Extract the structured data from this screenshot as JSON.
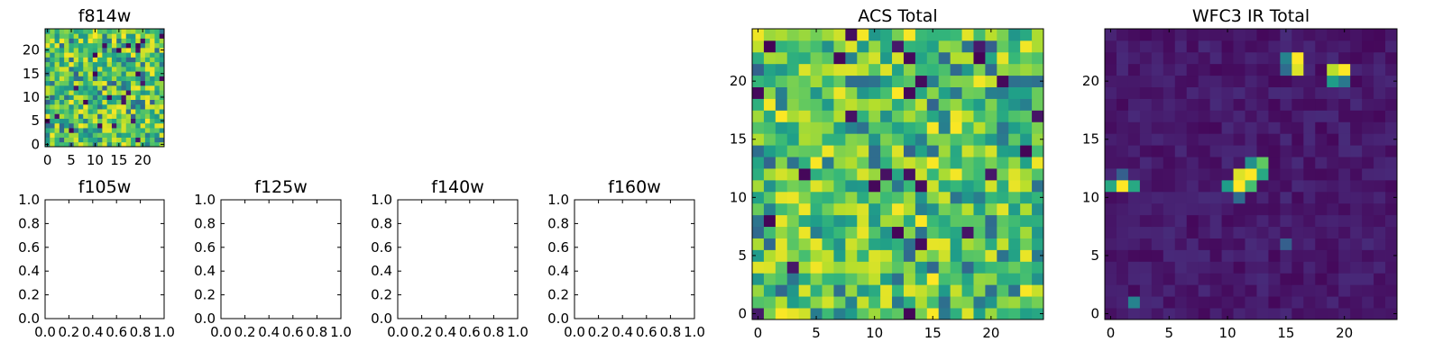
{
  "chart_data": [
    {
      "type": "heatmap",
      "title": "f814w",
      "colormap": "viridis",
      "grid_size": 25,
      "value_range": [
        0,
        1
      ],
      "seed": 814,
      "look": "bright-noise",
      "xlim": [
        -0.5,
        24.5
      ],
      "ylim": [
        -0.5,
        24.5
      ],
      "xticks": [
        0,
        5,
        10,
        15,
        20
      ],
      "yticks": [
        0,
        5,
        10,
        15,
        20
      ],
      "xticklabels": [
        "0",
        "5",
        "10",
        "15",
        "20"
      ],
      "yticklabels": [
        "0",
        "5",
        "10",
        "15",
        "20"
      ]
    },
    {
      "type": "heatmap",
      "title": "f105w",
      "empty": true,
      "xlim": [
        0,
        1
      ],
      "ylim": [
        0,
        1
      ],
      "xticks": [
        0,
        0.2,
        0.4,
        0.6,
        0.8,
        1.0
      ],
      "yticks": [
        0,
        0.2,
        0.4,
        0.6,
        0.8,
        1.0
      ],
      "xticklabels": [
        "0.0",
        "0.2",
        "0.4",
        "0.6",
        "0.8",
        "1.0"
      ],
      "yticklabels": [
        "0.0",
        "0.2",
        "0.4",
        "0.6",
        "0.8",
        "1.0"
      ]
    },
    {
      "type": "heatmap",
      "title": "f125w",
      "empty": true,
      "xlim": [
        0,
        1
      ],
      "ylim": [
        0,
        1
      ],
      "xticks": [
        0,
        0.2,
        0.4,
        0.6,
        0.8,
        1.0
      ],
      "yticks": [
        0,
        0.2,
        0.4,
        0.6,
        0.8,
        1.0
      ],
      "xticklabels": [
        "0.0",
        "0.2",
        "0.4",
        "0.6",
        "0.8",
        "1.0"
      ],
      "yticklabels": [
        "0.0",
        "0.2",
        "0.4",
        "0.6",
        "0.8",
        "1.0"
      ]
    },
    {
      "type": "heatmap",
      "title": "f140w",
      "empty": true,
      "xlim": [
        0,
        1
      ],
      "ylim": [
        0,
        1
      ],
      "xticks": [
        0,
        0.2,
        0.4,
        0.6,
        0.8,
        1.0
      ],
      "yticks": [
        0,
        0.2,
        0.4,
        0.6,
        0.8,
        1.0
      ],
      "xticklabels": [
        "0.0",
        "0.2",
        "0.4",
        "0.6",
        "0.8",
        "1.0"
      ],
      "yticklabels": [
        "0.0",
        "0.2",
        "0.4",
        "0.6",
        "0.8",
        "1.0"
      ]
    },
    {
      "type": "heatmap",
      "title": "f160w",
      "empty": true,
      "xlim": [
        0,
        1
      ],
      "ylim": [
        0,
        1
      ],
      "xticks": [
        0,
        0.2,
        0.4,
        0.6,
        0.8,
        1.0
      ],
      "yticks": [
        0,
        0.2,
        0.4,
        0.6,
        0.8,
        1.0
      ],
      "xticklabels": [
        "0.0",
        "0.2",
        "0.4",
        "0.6",
        "0.8",
        "1.0"
      ],
      "yticklabels": [
        "0.0",
        "0.2",
        "0.4",
        "0.6",
        "0.8",
        "1.0"
      ]
    },
    {
      "type": "heatmap",
      "title": "ACS Total",
      "colormap": "viridis",
      "grid_size": 25,
      "value_range": [
        0,
        1
      ],
      "seed": 2024,
      "look": "bright-noise",
      "xlim": [
        -0.5,
        24.5
      ],
      "ylim": [
        -0.5,
        24.5
      ],
      "xticks": [
        0,
        5,
        10,
        15,
        20
      ],
      "yticks": [
        0,
        5,
        10,
        15,
        20
      ],
      "xticklabels": [
        "0",
        "5",
        "10",
        "15",
        "20"
      ],
      "yticklabels": [
        "0",
        "5",
        "10",
        "15",
        "20"
      ]
    },
    {
      "type": "heatmap",
      "title": "WFC3 IR Total",
      "colormap": "viridis",
      "grid_size": 25,
      "value_range": [
        0,
        1
      ],
      "seed": 3,
      "look": "dark-with-sources",
      "bright_pixels": [
        {
          "x": 16,
          "y": 22,
          "v": 1.0
        },
        {
          "x": 16,
          "y": 21,
          "v": 0.95
        },
        {
          "x": 15,
          "y": 22,
          "v": 0.45
        },
        {
          "x": 15,
          "y": 21,
          "v": 0.35
        },
        {
          "x": 19,
          "y": 21,
          "v": 0.9
        },
        {
          "x": 20,
          "y": 21,
          "v": 1.0
        },
        {
          "x": 19,
          "y": 20,
          "v": 0.55
        },
        {
          "x": 20,
          "y": 20,
          "v": 0.4
        },
        {
          "x": 12,
          "y": 13,
          "v": 0.5
        },
        {
          "x": 13,
          "y": 13,
          "v": 0.75
        },
        {
          "x": 11,
          "y": 12,
          "v": 0.95
        },
        {
          "x": 12,
          "y": 12,
          "v": 1.0
        },
        {
          "x": 13,
          "y": 12,
          "v": 0.6
        },
        {
          "x": 10,
          "y": 11,
          "v": 0.55
        },
        {
          "x": 11,
          "y": 11,
          "v": 1.0
        },
        {
          "x": 12,
          "y": 11,
          "v": 0.7
        },
        {
          "x": 11,
          "y": 10,
          "v": 0.35
        },
        {
          "x": 0,
          "y": 11,
          "v": 0.6
        },
        {
          "x": 1,
          "y": 11,
          "v": 1.0
        },
        {
          "x": 2,
          "y": 11,
          "v": 0.6
        },
        {
          "x": 1,
          "y": 12,
          "v": 0.3
        },
        {
          "x": 2,
          "y": 1,
          "v": 0.45
        },
        {
          "x": 15,
          "y": 6,
          "v": 0.3
        }
      ],
      "xlim": [
        -0.5,
        24.5
      ],
      "ylim": [
        -0.5,
        24.5
      ],
      "xticks": [
        0,
        5,
        10,
        15,
        20
      ],
      "yticks": [
        0,
        5,
        10,
        15,
        20
      ],
      "xticklabels": [
        "0",
        "5",
        "10",
        "15",
        "20"
      ],
      "yticklabels": [
        "0",
        "5",
        "10",
        "15",
        "20"
      ]
    }
  ]
}
